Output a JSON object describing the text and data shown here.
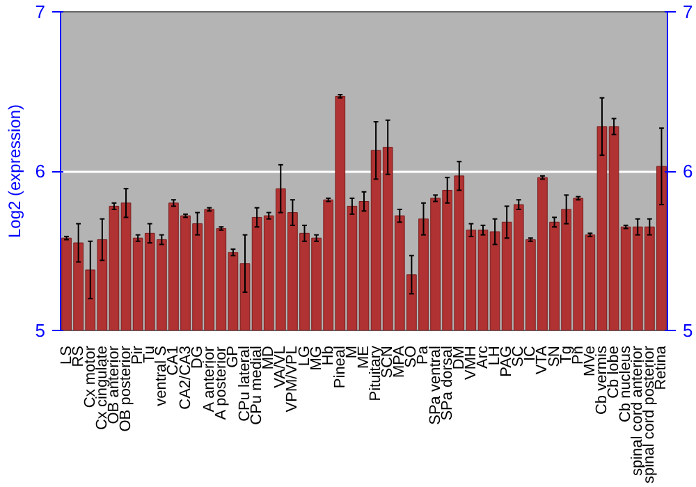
{
  "chart_data": {
    "type": "bar",
    "ylabel": "Log2 (expression)",
    "categories": [
      "LS",
      "RS",
      "Cx motor",
      "Cx cingulate",
      "OB anterior",
      "OB posterior",
      "Pir",
      "Tu",
      "ventral S",
      "CA1",
      "CA2/CA3",
      "DG",
      "A anterior",
      "A posterior",
      "GP",
      "CPu lateral",
      "CPu medial",
      "MD",
      "VA/VL",
      "VPM/VPL",
      "LG",
      "MG",
      "Hb",
      "Pineal",
      "M",
      "ME",
      "Pituitary",
      "SCN",
      "MPA",
      "SO",
      "Pa",
      "SPa ventral",
      "SPa dorsal",
      "DM",
      "VMH",
      "Arc",
      "LH",
      "PAG",
      "SC",
      "IC",
      "VTA",
      "SN",
      "Tg",
      "Pn",
      "MVe",
      "Cb vermis",
      "Cb lobe",
      "Cb nucleus",
      "spinal cord anterior",
      "spinal cord posterior",
      "Retina"
    ],
    "values": [
      5.58,
      5.55,
      5.38,
      5.57,
      5.78,
      5.8,
      5.58,
      5.61,
      5.57,
      5.8,
      5.72,
      5.67,
      5.76,
      5.64,
      5.49,
      5.42,
      5.71,
      5.72,
      5.89,
      5.74,
      5.61,
      5.58,
      5.82,
      6.47,
      5.78,
      5.81,
      6.13,
      6.15,
      5.72,
      5.35,
      5.7,
      5.83,
      5.88,
      5.97,
      5.63,
      5.63,
      5.62,
      5.68,
      5.79,
      5.57,
      5.96,
      5.68,
      5.76,
      5.83,
      5.6,
      6.28,
      6.28,
      5.65,
      5.65,
      5.65,
      6.03
    ],
    "errors": [
      0.01,
      0.12,
      0.18,
      0.13,
      0.02,
      0.09,
      0.02,
      0.06,
      0.03,
      0.02,
      0.01,
      0.07,
      0.01,
      0.01,
      0.02,
      0.18,
      0.06,
      0.02,
      0.15,
      0.08,
      0.05,
      0.02,
      0.01,
      0.01,
      0.05,
      0.06,
      0.18,
      0.17,
      0.04,
      0.12,
      0.1,
      0.02,
      0.08,
      0.09,
      0.04,
      0.03,
      0.08,
      0.1,
      0.03,
      0.01,
      0.01,
      0.03,
      0.09,
      0.01,
      0.01,
      0.18,
      0.05,
      0.01,
      0.05,
      0.05,
      0.24
    ],
    "color": "#b03232",
    "ylim": [
      5,
      7
    ],
    "yticks": [
      5,
      6,
      7
    ],
    "y2lim": [
      5,
      7
    ],
    "y2ticks": [
      5,
      6,
      7
    ],
    "grid": "y"
  }
}
